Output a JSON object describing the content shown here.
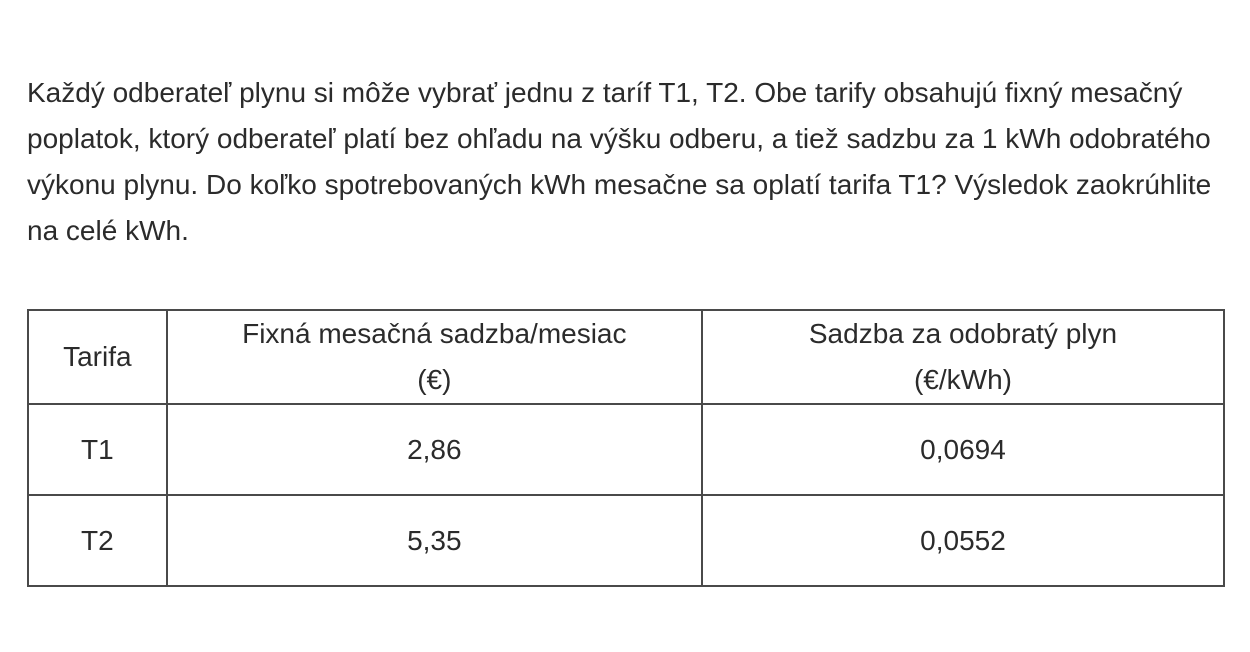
{
  "problem": {
    "text": "Každý odberateľ plynu si môže vybrať jednu z taríf T1, T2. Obe tarify obsahujú fixný mesačný poplatok, ktorý odberateľ platí bez ohľadu na výšku odberu, a tiež sadzbu za 1 kWh odobratého výkonu plynu. Do koľko spotrebovaných kWh mesačne sa oplatí tarifa T1? Výsledok zaokrúhlite na celé kWh."
  },
  "table": {
    "headers": {
      "tariff": "Tarifa",
      "fixed_line1": "Fixná mesačná sadzba/mesiac",
      "fixed_line2": "(€)",
      "rate_line1": "Sadzba za odobratý plyn",
      "rate_line2": "(€/kWh)"
    },
    "rows": [
      {
        "tariff": "T1",
        "fixed": "2,86",
        "rate": "0,0694"
      },
      {
        "tariff": "T2",
        "fixed": "5,35",
        "rate": "0,0552"
      }
    ]
  }
}
